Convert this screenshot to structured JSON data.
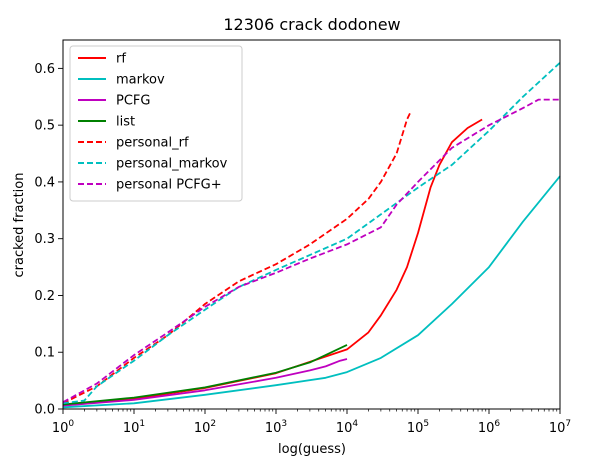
{
  "chart_data": {
    "type": "line",
    "title": "12306 crack dodonew",
    "xlabel": "log(guess)",
    "ylabel": "cracked fraction",
    "xscale": "log",
    "xlim": [
      1,
      10000000
    ],
    "ylim": [
      0,
      0.65
    ],
    "x_ticks": [
      {
        "value": 1,
        "base": "10",
        "exp": "0"
      },
      {
        "value": 10,
        "base": "10",
        "exp": "1"
      },
      {
        "value": 100,
        "base": "10",
        "exp": "2"
      },
      {
        "value": 1000,
        "base": "10",
        "exp": "3"
      },
      {
        "value": 10000,
        "base": "10",
        "exp": "4"
      },
      {
        "value": 100000,
        "base": "10",
        "exp": "5"
      },
      {
        "value": 1000000,
        "base": "10",
        "exp": "6"
      },
      {
        "value": 10000000,
        "base": "10",
        "exp": "7"
      }
    ],
    "y_ticks": [
      {
        "value": 0.0,
        "label": "0.0"
      },
      {
        "value": 0.1,
        "label": "0.1"
      },
      {
        "value": 0.2,
        "label": "0.2"
      },
      {
        "value": 0.3,
        "label": "0.3"
      },
      {
        "value": 0.4,
        "label": "0.4"
      },
      {
        "value": 0.5,
        "label": "0.5"
      },
      {
        "value": 0.6,
        "label": "0.6"
      }
    ],
    "grid": false,
    "legend_position": "upper-left",
    "series": [
      {
        "name": "rf",
        "color": "#ff0000",
        "dash": false,
        "points": [
          [
            1,
            0.008
          ],
          [
            10,
            0.018
          ],
          [
            100,
            0.037
          ],
          [
            1000,
            0.063
          ],
          [
            10000,
            0.105
          ],
          [
            20000,
            0.135
          ],
          [
            30000,
            0.165
          ],
          [
            50000,
            0.21
          ],
          [
            70000,
            0.25
          ],
          [
            100000,
            0.31
          ],
          [
            150000,
            0.39
          ],
          [
            200000,
            0.43
          ],
          [
            300000,
            0.47
          ],
          [
            500000,
            0.495
          ],
          [
            800000,
            0.51
          ]
        ]
      },
      {
        "name": "markov",
        "color": "#00bfbf",
        "dash": false,
        "points": [
          [
            1,
            0.003
          ],
          [
            10,
            0.01
          ],
          [
            100,
            0.025
          ],
          [
            1000,
            0.042
          ],
          [
            5000,
            0.055
          ],
          [
            10000,
            0.065
          ],
          [
            30000,
            0.09
          ],
          [
            100000,
            0.13
          ],
          [
            300000,
            0.185
          ],
          [
            1000000,
            0.25
          ],
          [
            3000000,
            0.33
          ],
          [
            10000000,
            0.41
          ]
        ]
      },
      {
        "name": "PCFG",
        "color": "#bf00bf",
        "dash": false,
        "points": [
          [
            1,
            0.006
          ],
          [
            10,
            0.016
          ],
          [
            100,
            0.033
          ],
          [
            1000,
            0.055
          ],
          [
            3000,
            0.068
          ],
          [
            5000,
            0.075
          ],
          [
            8000,
            0.085
          ],
          [
            10000,
            0.088
          ]
        ]
      },
      {
        "name": "list",
        "color": "#008000",
        "dash": false,
        "points": [
          [
            1,
            0.008
          ],
          [
            10,
            0.02
          ],
          [
            100,
            0.038
          ],
          [
            1000,
            0.064
          ],
          [
            3000,
            0.082
          ],
          [
            5000,
            0.095
          ],
          [
            10000,
            0.113
          ]
        ]
      },
      {
        "name": "personal_rf",
        "color": "#ff0000",
        "dash": true,
        "points": [
          [
            1,
            0.01
          ],
          [
            3,
            0.04
          ],
          [
            10,
            0.09
          ],
          [
            30,
            0.13
          ],
          [
            100,
            0.185
          ],
          [
            300,
            0.225
          ],
          [
            1000,
            0.255
          ],
          [
            3000,
            0.29
          ],
          [
            10000,
            0.335
          ],
          [
            20000,
            0.37
          ],
          [
            30000,
            0.4
          ],
          [
            50000,
            0.45
          ],
          [
            70000,
            0.51
          ],
          [
            80000,
            0.525
          ]
        ]
      },
      {
        "name": "personal_markov",
        "color": "#00bfbf",
        "dash": true,
        "points": [
          [
            1,
            0.01
          ],
          [
            2,
            0.015
          ],
          [
            3,
            0.04
          ],
          [
            10,
            0.085
          ],
          [
            30,
            0.13
          ],
          [
            100,
            0.175
          ],
          [
            300,
            0.215
          ],
          [
            1000,
            0.245
          ],
          [
            10000,
            0.3
          ],
          [
            100000,
            0.39
          ],
          [
            300000,
            0.43
          ],
          [
            1000000,
            0.49
          ],
          [
            3000000,
            0.55
          ],
          [
            10000000,
            0.61
          ]
        ]
      },
      {
        "name": "personal PCFG+",
        "color": "#bf00bf",
        "dash": true,
        "points": [
          [
            1,
            0.012
          ],
          [
            3,
            0.045
          ],
          [
            10,
            0.095
          ],
          [
            30,
            0.135
          ],
          [
            100,
            0.18
          ],
          [
            300,
            0.215
          ],
          [
            1000,
            0.24
          ],
          [
            3000,
            0.265
          ],
          [
            10000,
            0.29
          ],
          [
            30000,
            0.32
          ],
          [
            50000,
            0.36
          ],
          [
            100000,
            0.4
          ],
          [
            300000,
            0.46
          ],
          [
            1000000,
            0.5
          ],
          [
            3000000,
            0.53
          ],
          [
            5000000,
            0.545
          ],
          [
            10000000,
            0.545
          ]
        ]
      }
    ]
  }
}
